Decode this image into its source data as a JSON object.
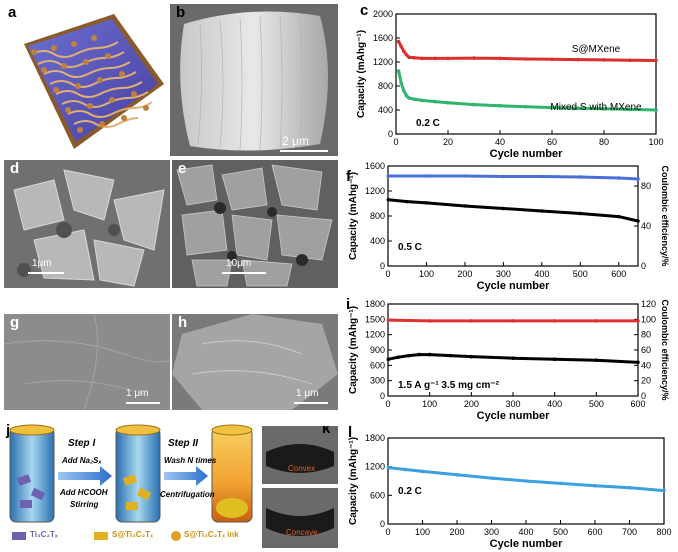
{
  "panels": {
    "a": "a",
    "b": "b",
    "c": "c",
    "d": "d",
    "e": "e",
    "f": "f",
    "g": "g",
    "h": "h",
    "i": "i",
    "j": "j",
    "k": "k",
    "l": "l"
  },
  "scalebars": {
    "b": "2 μm",
    "d": "1μm",
    "e": "10μm",
    "g": "1 μm",
    "h": "1 μm"
  },
  "panel_j": {
    "step1": "Step I",
    "step1_a": "Add Na₂Sₓ",
    "step1_b": "Add HCOOH",
    "step1_c": "Stirring",
    "step2": "Step II",
    "step2_a": "Wash N times",
    "step2_b": "Centrifugation",
    "legend1": "Ti₃C₂Tₓ",
    "legend2": "S@Ti₃C₂Tₓ",
    "legend3": "S@Ti₃C₂Tₓ ink"
  },
  "panel_k": {
    "convex": "Convex",
    "concave": "Concave"
  },
  "chart_data": [
    {
      "id": "c",
      "type": "line",
      "xlabel": "Cycle number",
      "ylabel": "Capacity (mAhg⁻¹)",
      "xlim": [
        0,
        100
      ],
      "ylim": [
        0,
        2000
      ],
      "xticks": [
        0,
        20,
        40,
        60,
        80,
        100
      ],
      "yticks": [
        0,
        400,
        800,
        1200,
        1600,
        2000
      ],
      "annotation": "0.2 C",
      "series": [
        {
          "name": "S@MXene",
          "color": "#d93030",
          "x": [
            1,
            2,
            3,
            4,
            5,
            7,
            10,
            15,
            20,
            30,
            40,
            50,
            60,
            70,
            80,
            90,
            100
          ],
          "y": [
            1540,
            1460,
            1380,
            1320,
            1280,
            1270,
            1260,
            1260,
            1260,
            1265,
            1260,
            1250,
            1245,
            1240,
            1235,
            1230,
            1225
          ]
        },
        {
          "name": "Mixed S with MXene",
          "color": "#2db56b",
          "x": [
            1,
            2,
            3,
            4,
            5,
            7,
            10,
            15,
            20,
            30,
            40,
            50,
            60,
            70,
            80,
            90,
            100
          ],
          "y": [
            1050,
            850,
            720,
            640,
            600,
            580,
            560,
            540,
            520,
            490,
            470,
            455,
            440,
            430,
            420,
            410,
            400
          ]
        }
      ]
    },
    {
      "id": "f",
      "type": "line",
      "xlabel": "Cycle number",
      "ylabel": "Capacity (mAhg⁻¹)",
      "y2label": "Coulombic efficiency/%",
      "xlim": [
        0,
        650
      ],
      "ylim": [
        0,
        1600
      ],
      "y2lim": [
        0,
        100
      ],
      "xticks": [
        0,
        100,
        200,
        300,
        400,
        500,
        600
      ],
      "yticks": [
        0,
        400,
        800,
        1200,
        1600
      ],
      "y2ticks": [
        0,
        40,
        80
      ],
      "annotation": "0.5 C",
      "series": [
        {
          "name": "",
          "color": "#000000",
          "axis": "left",
          "x": [
            1,
            50,
            100,
            200,
            300,
            400,
            500,
            600,
            650
          ],
          "y": [
            1060,
            1030,
            1010,
            960,
            920,
            880,
            840,
            790,
            720
          ]
        },
        {
          "name": "",
          "color": "#4a6fd9",
          "axis": "right",
          "x": [
            1,
            100,
            200,
            300,
            400,
            500,
            600,
            650
          ],
          "y": [
            90,
            90,
            90,
            89.5,
            89.5,
            89,
            88,
            87
          ]
        }
      ]
    },
    {
      "id": "i",
      "type": "line",
      "xlabel": "Cycle number",
      "ylabel": "Capacity (mAhg⁻¹)",
      "y2label": "Coulombic efficiency/%",
      "xlim": [
        0,
        600
      ],
      "ylim": [
        0,
        1800
      ],
      "y2lim": [
        0,
        120
      ],
      "xticks": [
        0,
        100,
        200,
        300,
        400,
        500,
        600
      ],
      "yticks": [
        0,
        300,
        600,
        900,
        1200,
        1500,
        1800
      ],
      "y2ticks": [
        0,
        20,
        40,
        60,
        80,
        100,
        120
      ],
      "annotation": "1.5 A g⁻¹    3.5 mg cm⁻²",
      "series": [
        {
          "name": "",
          "color": "#000000",
          "axis": "left",
          "x": [
            1,
            25,
            50,
            75,
            100,
            150,
            200,
            300,
            400,
            500,
            600
          ],
          "y": [
            720,
            760,
            790,
            810,
            810,
            790,
            770,
            740,
            720,
            700,
            660
          ]
        },
        {
          "name": "",
          "color": "#e03030",
          "axis": "right",
          "x": [
            1,
            100,
            200,
            300,
            400,
            500,
            600
          ],
          "y": [
            99,
            98,
            98,
            98,
            98,
            98,
            98
          ]
        }
      ]
    },
    {
      "id": "l",
      "type": "line",
      "xlabel": "Cycle number",
      "ylabel": "Capacity (mAhg⁻¹)",
      "xlim": [
        0,
        800
      ],
      "ylim": [
        0,
        1800
      ],
      "xticks": [
        0,
        100,
        200,
        300,
        400,
        500,
        600,
        700,
        800
      ],
      "yticks": [
        0,
        600,
        1200,
        1800
      ],
      "annotation": "0.2 C",
      "series": [
        {
          "name": "",
          "color": "#3aa0e0",
          "x": [
            1,
            50,
            100,
            200,
            300,
            400,
            500,
            600,
            700,
            800
          ],
          "y": [
            1180,
            1140,
            1100,
            1030,
            960,
            900,
            850,
            800,
            760,
            700
          ]
        }
      ]
    }
  ]
}
